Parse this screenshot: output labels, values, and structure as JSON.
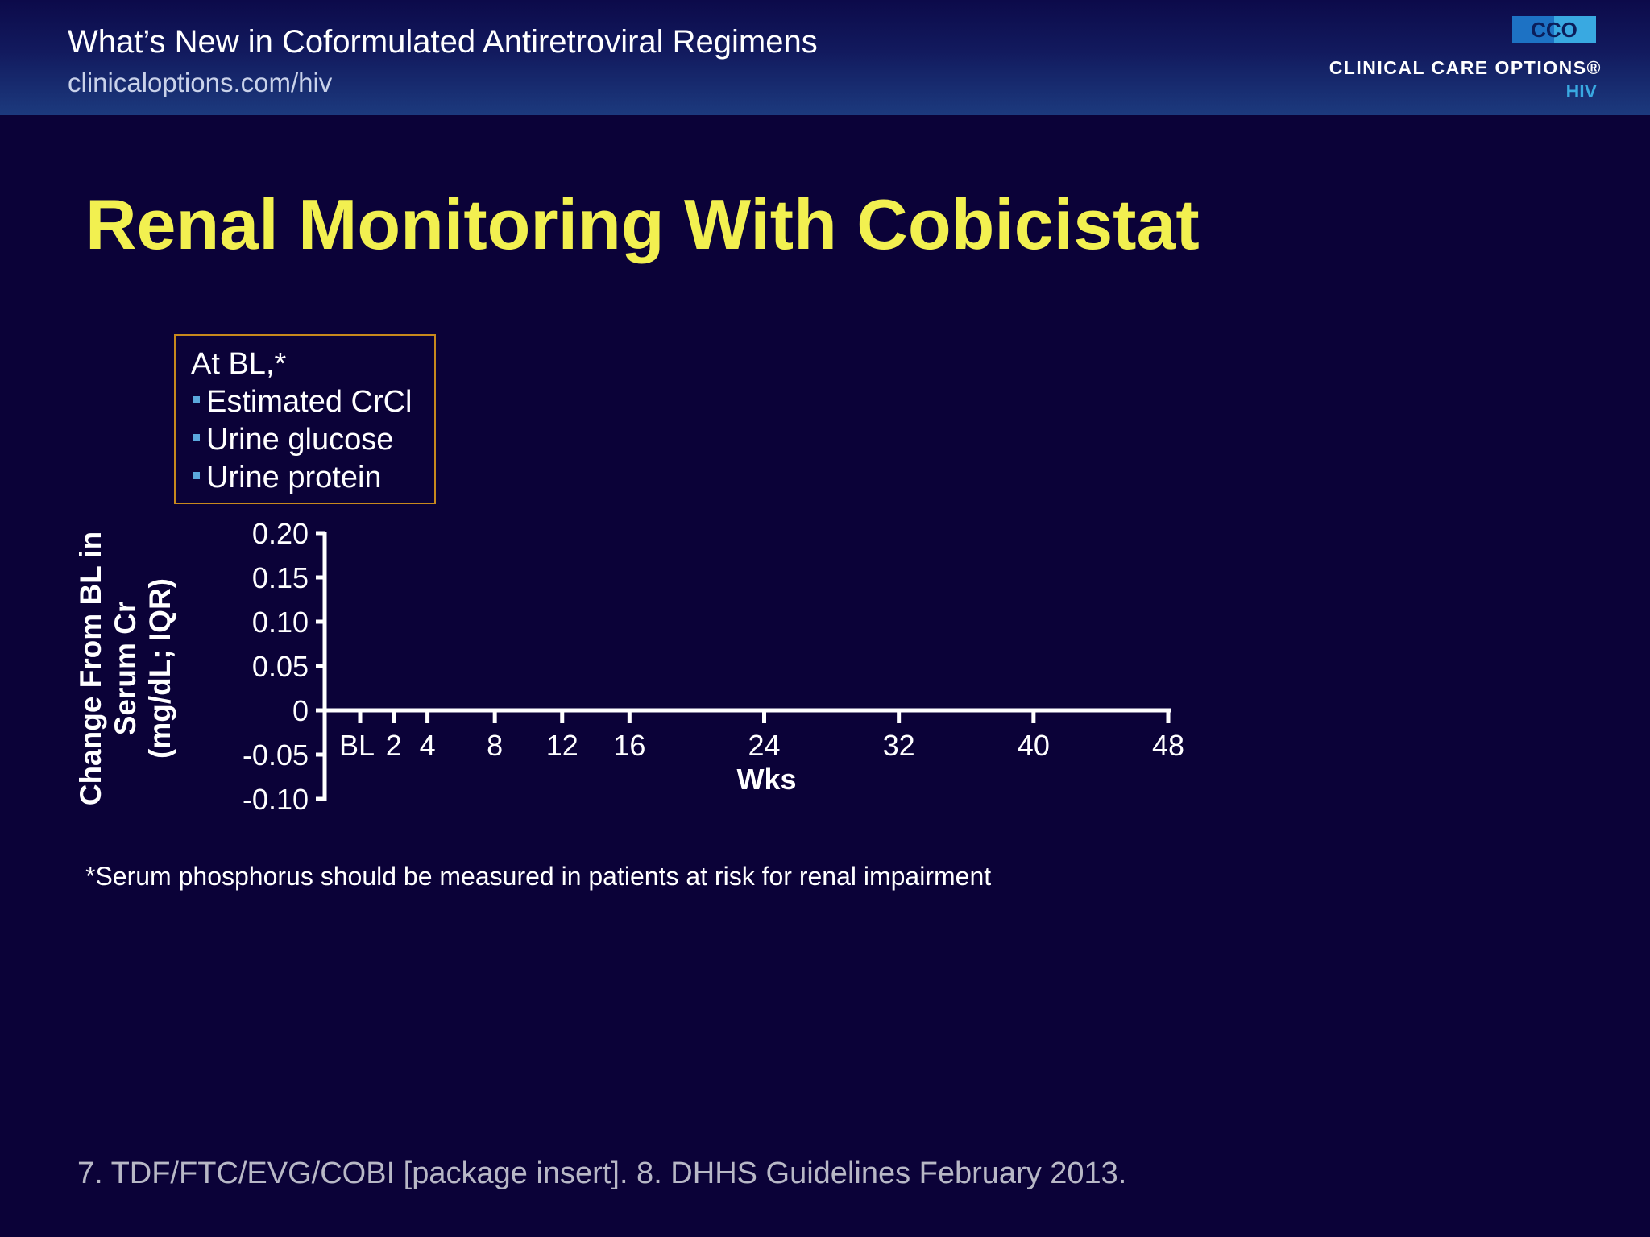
{
  "header": {
    "title": "What’s New in Coformulated Antiretroviral Regimens",
    "url": "clinicaloptions.com/hiv",
    "logo_mark": "CCO",
    "logo_text": "CLINICAL CARE OPTIONS®",
    "logo_sub": "HIV"
  },
  "slide": {
    "title": "Renal Monitoring With Cobicistat",
    "box": {
      "heading": "At BL,*",
      "items": [
        "Estimated CrCl",
        "Urine glucose",
        "Urine protein"
      ]
    },
    "footnote": "*Serum phosphorus should be measured in patients at risk for renal impairment",
    "citation": "7. TDF/FTC/EVG/COBI [package insert]. 8. DHHS Guidelines February 2013."
  },
  "colors": {
    "background": "#0b0238",
    "title": "#f2f050",
    "box_border": "#c8891d",
    "bullet": "#5ba8dd"
  },
  "chart_data": {
    "type": "line",
    "title": "",
    "xlabel": "Wks",
    "ylabel_lines": [
      "Change From BL in",
      "Serum Cr",
      "(mg/dL; IQR)"
    ],
    "x_ticks": [
      {
        "value": 0,
        "label": "BL"
      },
      {
        "value": 2,
        "label": "2"
      },
      {
        "value": 4,
        "label": "4"
      },
      {
        "value": 8,
        "label": "8"
      },
      {
        "value": 12,
        "label": "12"
      },
      {
        "value": 16,
        "label": "16"
      },
      {
        "value": 24,
        "label": "24"
      },
      {
        "value": 32,
        "label": "32"
      },
      {
        "value": 40,
        "label": "40"
      },
      {
        "value": 48,
        "label": "48"
      }
    ],
    "y_ticks": [
      {
        "value": 0.2,
        "label": "0.20"
      },
      {
        "value": 0.15,
        "label": "0.15"
      },
      {
        "value": 0.1,
        "label": "0.10"
      },
      {
        "value": 0.05,
        "label": "0.05"
      },
      {
        "value": 0,
        "label": "0"
      },
      {
        "value": -0.05,
        "label": "-0.05"
      },
      {
        "value": -0.1,
        "label": "-0.10"
      }
    ],
    "xlim": [
      -2,
      48
    ],
    "ylim": [
      -0.1,
      0.2
    ],
    "series": [],
    "grid": false
  }
}
